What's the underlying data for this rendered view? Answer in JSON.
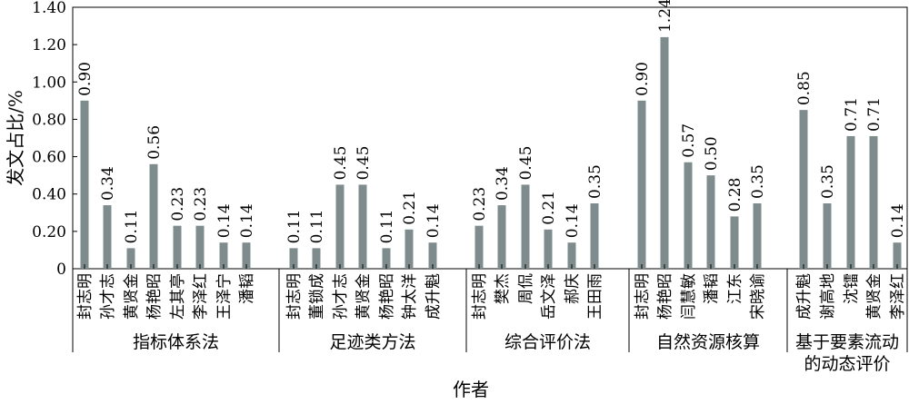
{
  "chart_data": {
    "type": "bar",
    "xlabel": "作者",
    "ylabel": "发文占比/%",
    "ylim": [
      0,
      1.4
    ],
    "yticks": [
      "0",
      "0.20",
      "0.40",
      "0.60",
      "0.80",
      "1.00",
      "1.20",
      "1.40"
    ],
    "bar_color": "#7f8c8d",
    "groups": [
      {
        "name": "指标体系法",
        "categories": [
          "封志明",
          "孙才志",
          "黄贤金",
          "杨艳昭",
          "左其亭",
          "李泽红",
          "王泽宁",
          "潘韬"
        ],
        "values": [
          0.9,
          0.34,
          0.11,
          0.56,
          0.23,
          0.23,
          0.14,
          0.14
        ]
      },
      {
        "name": "足迹类方法",
        "categories": [
          "封志明",
          "董锁成",
          "孙才志",
          "黄贤金",
          "杨艳昭",
          "钟太洋",
          "成升魁"
        ],
        "values": [
          0.11,
          0.11,
          0.45,
          0.45,
          0.11,
          0.21,
          0.14
        ]
      },
      {
        "name": "综合评价法",
        "categories": [
          "封志明",
          "樊杰",
          "周侃",
          "岳文泽",
          "郝庆",
          "王田雨"
        ],
        "values": [
          0.23,
          0.34,
          0.45,
          0.21,
          0.14,
          0.35
        ]
      },
      {
        "name": "自然资源核算",
        "categories": [
          "封志明",
          "杨艳昭",
          "闫慧敏",
          "潘韬",
          "江东",
          "宋晓谕"
        ],
        "values": [
          0.9,
          1.24,
          0.57,
          0.5,
          0.28,
          0.35
        ]
      },
      {
        "name": "基于要素流动\n的动态评价",
        "categories": [
          "成升魁",
          "谢高地",
          "沈镭",
          "黄贤金",
          "李泽红"
        ],
        "values": [
          0.85,
          0.35,
          0.71,
          0.71,
          0.14
        ]
      }
    ]
  }
}
